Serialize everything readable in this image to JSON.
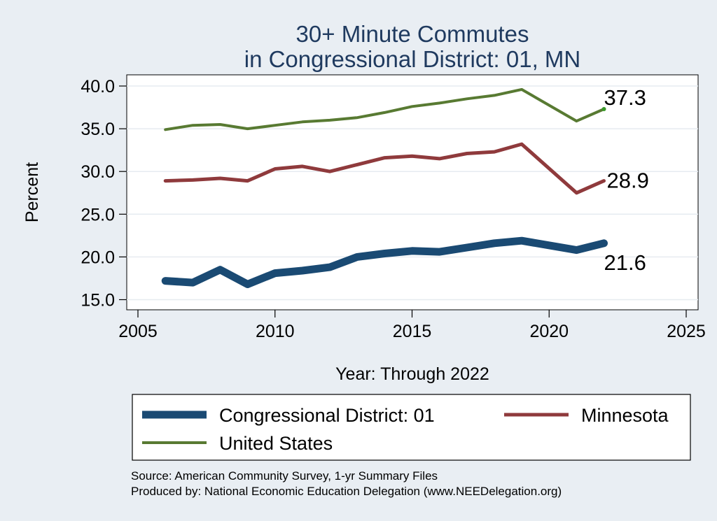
{
  "chart_data": {
    "type": "line",
    "title_lines": [
      "30+ Minute Commutes",
      "in Congressional District:  01, MN"
    ],
    "xlabel": "Year: Through 2022",
    "ylabel": "Percent",
    "xlim": [
      2005,
      2025
    ],
    "ylim": [
      15,
      40
    ],
    "xticks": [
      "2005",
      "2010",
      "2015",
      "2020",
      "2025"
    ],
    "yticks": [
      "15.0",
      "20.0",
      "25.0",
      "30.0",
      "35.0",
      "40.0"
    ],
    "grid": true,
    "legend_position": "bottom",
    "x": [
      2006,
      2007,
      2008,
      2009,
      2010,
      2011,
      2012,
      2013,
      2014,
      2015,
      2016,
      2017,
      2018,
      2019,
      2021,
      2022
    ],
    "series": [
      {
        "name": "Congressional District:  01",
        "color": "#1a4a73",
        "values": [
          17.2,
          17.0,
          18.5,
          16.8,
          18.1,
          18.4,
          18.8,
          20.0,
          20.4,
          20.7,
          20.6,
          21.1,
          21.6,
          21.9,
          20.8,
          21.6
        ],
        "end_label": "21.6"
      },
      {
        "name": "Minnesota",
        "color": "#8f3a3c",
        "values": [
          28.9,
          29.0,
          29.2,
          28.9,
          30.3,
          30.6,
          30.0,
          30.8,
          31.6,
          31.8,
          31.5,
          32.1,
          32.3,
          33.2,
          27.5,
          28.9
        ],
        "end_label": "28.9"
      },
      {
        "name": "United States",
        "color": "#587a32",
        "values": [
          34.9,
          35.4,
          35.5,
          35.0,
          35.4,
          35.8,
          36.0,
          36.3,
          36.9,
          37.6,
          38.0,
          38.5,
          38.9,
          39.6,
          35.9,
          37.3
        ],
        "end_label": "37.3"
      }
    ]
  },
  "legend": {
    "items": [
      "Congressional District:  01",
      "Minnesota",
      "United States"
    ]
  },
  "source": {
    "line1": "Source: American Community Survey, 1-yr Summary Files",
    "line2": "Produced by: National Economic Education Delegation (www.NEEDelegation.org)"
  }
}
